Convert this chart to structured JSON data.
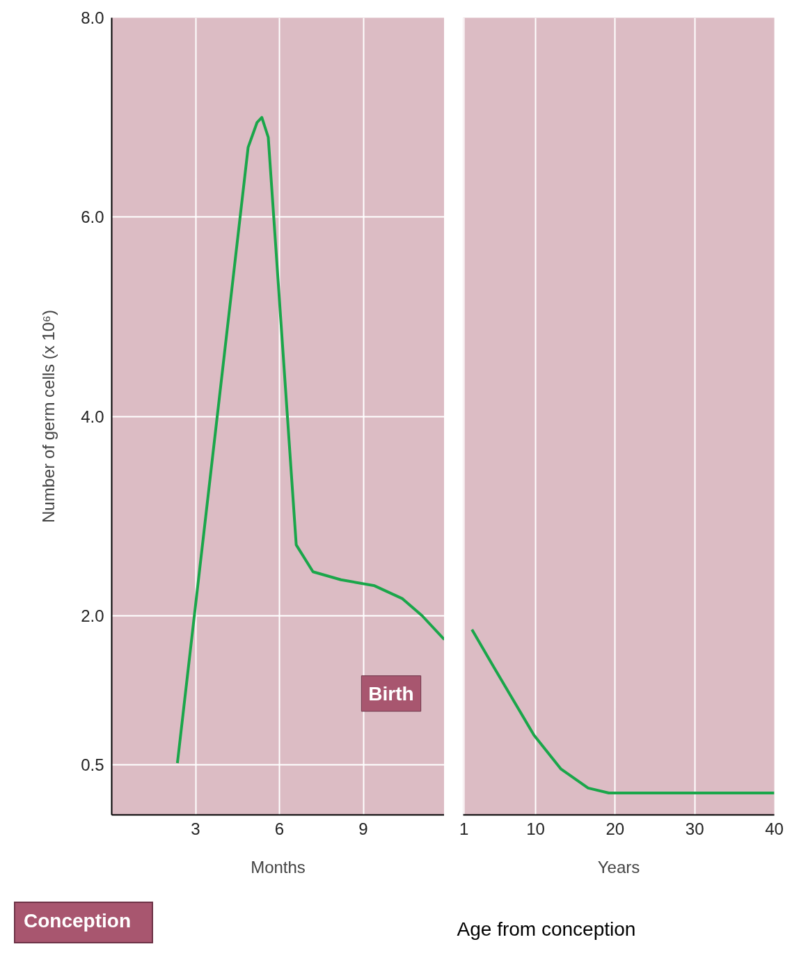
{
  "chart_data": [
    {
      "type": "line",
      "xlabel": "Months",
      "ylabel": "Number of germ cells (x 10⁶)",
      "xlim": [
        0,
        11.9
      ],
      "ylim": [
        0,
        8
      ],
      "xticks": [
        3,
        6,
        9
      ],
      "yticks": [
        {
          "value": 0.5,
          "label": "0.5"
        },
        {
          "value": 2,
          "label": "2.0"
        },
        {
          "value": 4,
          "label": "4.0"
        },
        {
          "value": 6,
          "label": "6.0"
        },
        {
          "value": 8,
          "label": "8.0"
        }
      ],
      "grid": true,
      "series": [
        {
          "color": "#1aa64a",
          "x": [
            2.35,
            4.88,
            5.2,
            5.37,
            5.6,
            6.6,
            7.2,
            8.2,
            9.4,
            10.4,
            11.1,
            11.9
          ],
          "values": [
            0.52,
            6.7,
            6.95,
            7.0,
            6.8,
            2.71,
            2.44,
            2.36,
            2.3,
            2.17,
            2.0,
            1.76
          ]
        }
      ],
      "annotations": [
        "Conception",
        "Birth"
      ]
    },
    {
      "type": "line",
      "xlabel": "Years",
      "xlim": [
        0.9,
        40
      ],
      "ylim": [
        0,
        8
      ],
      "xticks": [
        1,
        10,
        20,
        30,
        40
      ],
      "grid": "x",
      "tick_labels": "x",
      "series": [
        {
          "color": "#1aa64a",
          "x": [
            2.0,
            4.7,
            9.8,
            13.2,
            16.6,
            19.2,
            40
          ],
          "values": [
            1.86,
            1.49,
            0.8,
            0.46,
            0.27,
            0.22,
            0.22
          ]
        }
      ],
      "annotations": [
        "Age from conception"
      ]
    }
  ]
}
